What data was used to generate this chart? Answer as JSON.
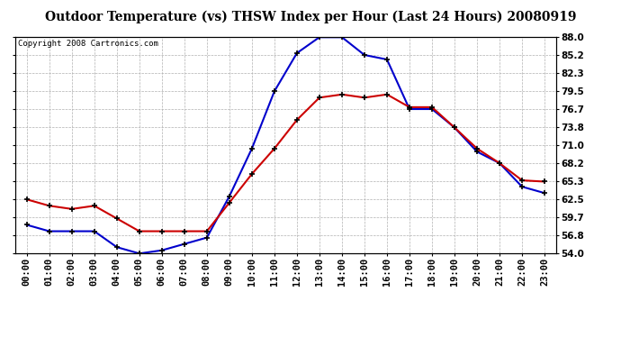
{
  "title": "Outdoor Temperature (vs) THSW Index per Hour (Last 24 Hours) 20080919",
  "copyright": "Copyright 2008 Cartronics.com",
  "hours": [
    "00:00",
    "01:00",
    "02:00",
    "03:00",
    "04:00",
    "05:00",
    "06:00",
    "07:00",
    "08:00",
    "09:00",
    "10:00",
    "11:00",
    "12:00",
    "13:00",
    "14:00",
    "15:00",
    "16:00",
    "17:00",
    "18:00",
    "19:00",
    "20:00",
    "21:00",
    "22:00",
    "23:00"
  ],
  "outdoor_temp": [
    62.5,
    61.5,
    61.0,
    61.5,
    59.5,
    57.5,
    57.5,
    57.5,
    57.5,
    62.0,
    66.5,
    70.5,
    75.0,
    78.5,
    79.0,
    78.5,
    79.0,
    77.0,
    77.0,
    73.8,
    70.5,
    68.2,
    65.5,
    65.3
  ],
  "thsw_index": [
    58.5,
    57.5,
    57.5,
    57.5,
    55.0,
    54.0,
    54.5,
    55.5,
    56.5,
    63.0,
    70.5,
    79.5,
    85.5,
    88.0,
    88.0,
    85.2,
    84.5,
    76.7,
    76.7,
    73.8,
    70.0,
    68.2,
    64.5,
    63.5
  ],
  "ylim": [
    54.0,
    88.0
  ],
  "yticks": [
    54.0,
    56.8,
    59.7,
    62.5,
    65.3,
    68.2,
    71.0,
    73.8,
    76.7,
    79.5,
    82.3,
    85.2,
    88.0
  ],
  "ytick_labels": [
    "54.0",
    "56.8",
    "59.7",
    "62.5",
    "65.3",
    "68.2",
    "71.0",
    "73.8",
    "76.7",
    "79.5",
    "82.3",
    "85.2",
    "88.0"
  ],
  "temp_color": "#cc0000",
  "thsw_color": "#0000cc",
  "bg_color": "#ffffff",
  "grid_color": "#b0b0b0",
  "title_fontsize": 10,
  "copyright_fontsize": 6.5,
  "tick_fontsize": 7.5
}
